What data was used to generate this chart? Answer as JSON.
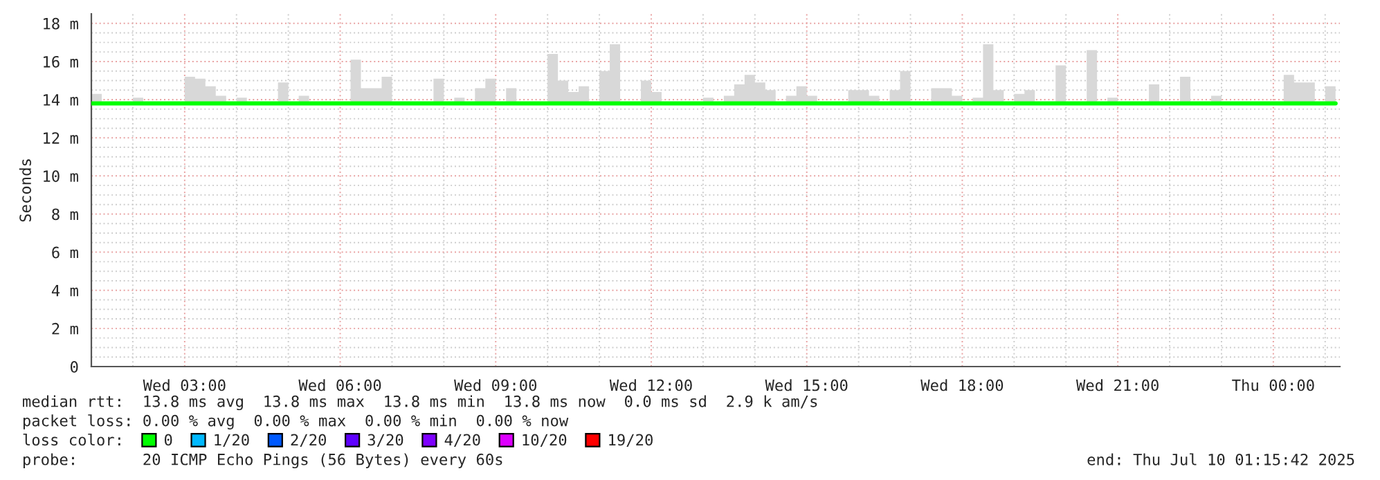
{
  "chart_data": {
    "type": "step",
    "ylabel": "Seconds",
    "legend_title": "loss color:",
    "legend": "bottom",
    "grid": true,
    "xlim": [
      "2025-07-09T01:12",
      "2025-07-10T01:17"
    ],
    "xticks": [
      {
        "value": "2025-07-09T02:00",
        "label": null
      },
      {
        "value": "2025-07-09T03:00",
        "label": "Wed 03:00"
      },
      {
        "value": "2025-07-09T04:00",
        "label": null
      },
      {
        "value": "2025-07-09T05:00",
        "label": null
      },
      {
        "value": "2025-07-09T06:00",
        "label": "Wed 06:00"
      },
      {
        "value": "2025-07-09T07:00",
        "label": null
      },
      {
        "value": "2025-07-09T08:00",
        "label": null
      },
      {
        "value": "2025-07-09T09:00",
        "label": "Wed 09:00"
      },
      {
        "value": "2025-07-09T10:00",
        "label": null
      },
      {
        "value": "2025-07-09T11:00",
        "label": null
      },
      {
        "value": "2025-07-09T12:00",
        "label": "Wed 12:00"
      },
      {
        "value": "2025-07-09T13:00",
        "label": null
      },
      {
        "value": "2025-07-09T14:00",
        "label": null
      },
      {
        "value": "2025-07-09T15:00",
        "label": "Wed 15:00"
      },
      {
        "value": "2025-07-09T16:00",
        "label": null
      },
      {
        "value": "2025-07-09T17:00",
        "label": null
      },
      {
        "value": "2025-07-09T18:00",
        "label": "Wed 18:00"
      },
      {
        "value": "2025-07-09T19:00",
        "label": null
      },
      {
        "value": "2025-07-09T20:00",
        "label": null
      },
      {
        "value": "2025-07-09T21:00",
        "label": "Wed 21:00"
      },
      {
        "value": "2025-07-09T22:00",
        "label": null
      },
      {
        "value": "2025-07-09T23:00",
        "label": null
      },
      {
        "value": "2025-07-10T00:00",
        "label": "Thu 00:00"
      },
      {
        "value": "2025-07-10T01:00",
        "label": null
      }
    ],
    "ylim": [
      0,
      18.5
    ],
    "yticks": [
      0,
      {
        "value": 0.5,
        "label": null
      },
      {
        "value": 1,
        "label": null
      },
      {
        "value": 1.5,
        "label": null
      },
      {
        "value": 2,
        "label": "2 m"
      },
      {
        "value": 2.5,
        "label": null
      },
      {
        "value": 3,
        "label": null
      },
      {
        "value": 3.5,
        "label": null
      },
      {
        "value": 4,
        "label": "4 m"
      },
      {
        "value": 4.5,
        "label": null
      },
      {
        "value": 5,
        "label": null
      },
      {
        "value": 5.5,
        "label": null
      },
      {
        "value": 6,
        "label": "6 m"
      },
      {
        "value": 6.5,
        "label": null
      },
      {
        "value": 7,
        "label": null
      },
      {
        "value": 7.5,
        "label": null
      },
      {
        "value": 8,
        "label": "8 m"
      },
      {
        "value": 8.5,
        "label": null
      },
      {
        "value": 9,
        "label": null
      },
      {
        "value": 9.5,
        "label": null
      },
      {
        "value": 10,
        "label": "10 m"
      },
      {
        "value": 10.5,
        "label": null
      },
      {
        "value": 11,
        "label": null
      },
      {
        "value": 11.5,
        "label": null
      },
      {
        "value": 12,
        "label": "12 m"
      },
      {
        "value": 12.5,
        "label": null
      },
      {
        "value": 13,
        "label": null
      },
      {
        "value": 13.5,
        "label": null
      },
      {
        "value": 14,
        "label": "14 m"
      },
      {
        "value": 14.5,
        "label": null
      },
      {
        "value": 15,
        "label": null
      },
      {
        "value": 15.5,
        "label": null
      },
      {
        "value": 16,
        "label": "16 m"
      },
      {
        "value": 16.5,
        "label": null
      },
      {
        "value": 17,
        "label": null
      },
      {
        "value": 17.5,
        "label": null
      },
      {
        "value": 18,
        "label": "18 m"
      }
    ],
    "series": [
      {
        "name": "0",
        "color": "#00ff00",
        "x": [
          "2025-07-09T01:12",
          "2025-07-09T01:24",
          "2025-07-09T02:00",
          "2025-07-09T02:12",
          "2025-07-09T03:00",
          "2025-07-09T03:12",
          "2025-07-09T03:24",
          "2025-07-09T03:36",
          "2025-07-09T03:48",
          "2025-07-09T04:00",
          "2025-07-09T04:12",
          "2025-07-09T04:48",
          "2025-07-09T05:00",
          "2025-07-09T05:12",
          "2025-07-09T05:24",
          "2025-07-09T06:12",
          "2025-07-09T06:24",
          "2025-07-09T06:36",
          "2025-07-09T06:48",
          "2025-07-09T07:00",
          "2025-07-09T07:48",
          "2025-07-09T08:00",
          "2025-07-09T08:12",
          "2025-07-09T08:24",
          "2025-07-09T08:36",
          "2025-07-09T08:48",
          "2025-07-09T09:00",
          "2025-07-09T09:12",
          "2025-07-09T09:24",
          "2025-07-09T10:00",
          "2025-07-09T10:12",
          "2025-07-09T10:24",
          "2025-07-09T10:36",
          "2025-07-09T10:48",
          "2025-07-09T11:00",
          "2025-07-09T11:12",
          "2025-07-09T11:24",
          "2025-07-09T11:48",
          "2025-07-09T12:00",
          "2025-07-09T12:12",
          "2025-07-09T13:00",
          "2025-07-09T13:12",
          "2025-07-09T13:24",
          "2025-07-09T13:36",
          "2025-07-09T13:48",
          "2025-07-09T14:00",
          "2025-07-09T14:12",
          "2025-07-09T14:24",
          "2025-07-09T14:36",
          "2025-07-09T14:48",
          "2025-07-09T15:00",
          "2025-07-09T15:12",
          "2025-07-09T15:48",
          "2025-07-09T16:00",
          "2025-07-09T16:12",
          "2025-07-09T16:24",
          "2025-07-09T16:36",
          "2025-07-09T16:48",
          "2025-07-09T17:00",
          "2025-07-09T17:24",
          "2025-07-09T17:36",
          "2025-07-09T17:48",
          "2025-07-09T18:00",
          "2025-07-09T18:12",
          "2025-07-09T18:24",
          "2025-07-09T18:36",
          "2025-07-09T18:48",
          "2025-07-09T19:00",
          "2025-07-09T19:12",
          "2025-07-09T19:24",
          "2025-07-09T19:48",
          "2025-07-09T20:00",
          "2025-07-09T20:24",
          "2025-07-09T20:36",
          "2025-07-09T20:48",
          "2025-07-09T21:00",
          "2025-07-09T21:36",
          "2025-07-09T21:48",
          "2025-07-09T22:12",
          "2025-07-09T22:24",
          "2025-07-09T22:48",
          "2025-07-09T23:00",
          "2025-07-10T00:12",
          "2025-07-10T00:24",
          "2025-07-10T00:36",
          "2025-07-10T00:48",
          "2025-07-10T01:00",
          "2025-07-10T01:12"
        ],
        "values": [
          13.8,
          13.8,
          13.8,
          13.8,
          13.8,
          13.8,
          13.8,
          13.8,
          13.8,
          13.8,
          13.8,
          13.8,
          13.8,
          13.8,
          13.8,
          13.8,
          13.8,
          13.8,
          13.8,
          13.8,
          13.8,
          13.8,
          13.8,
          13.8,
          13.8,
          13.8,
          13.8,
          13.8,
          13.8,
          13.8,
          13.8,
          13.8,
          13.8,
          13.8,
          13.8,
          13.8,
          13.8,
          13.8,
          13.8,
          13.8,
          13.8,
          13.8,
          13.8,
          13.8,
          13.8,
          13.8,
          13.8,
          13.8,
          13.8,
          13.8,
          13.8,
          13.8,
          13.8,
          13.8,
          13.8,
          13.8,
          13.8,
          13.8,
          13.8,
          13.8,
          13.8,
          13.8,
          13.8,
          13.8,
          13.8,
          13.8,
          13.8,
          13.8,
          13.8,
          13.8,
          13.8,
          13.8,
          13.8,
          13.8,
          13.8,
          13.8,
          13.8,
          13.8,
          13.8,
          13.8,
          13.8,
          13.8,
          13.8,
          13.8,
          13.8,
          13.8,
          13.8,
          13.8
        ],
        "lower": [
          13.8,
          13.8,
          13.8,
          13.8,
          13.8,
          13.8,
          13.8,
          13.8,
          13.8,
          13.8,
          13.8,
          13.8,
          13.8,
          13.8,
          13.8,
          13.8,
          13.8,
          13.8,
          13.8,
          13.8,
          13.8,
          13.8,
          13.8,
          13.8,
          13.8,
          13.8,
          13.8,
          13.8,
          13.8,
          13.8,
          13.8,
          13.8,
          13.8,
          13.8,
          13.8,
          13.8,
          13.8,
          13.8,
          13.8,
          13.8,
          13.8,
          13.8,
          13.8,
          13.8,
          13.8,
          13.8,
          13.8,
          13.8,
          13.8,
          13.8,
          13.8,
          13.8,
          13.8,
          13.8,
          13.8,
          13.8,
          13.8,
          13.8,
          13.8,
          13.8,
          13.8,
          13.8,
          13.8,
          13.8,
          13.8,
          13.8,
          13.8,
          13.8,
          13.8,
          13.8,
          13.8,
          13.8,
          13.8,
          13.8,
          13.8,
          13.8,
          13.8,
          13.8,
          13.8,
          13.8,
          13.8,
          13.8,
          13.8,
          13.8,
          13.8,
          13.8,
          13.8,
          13.8
        ],
        "upper": [
          14.3,
          13.9,
          14.1,
          13.9,
          15.2,
          15.1,
          14.7,
          14.2,
          13.9,
          14.1,
          13.9,
          14.9,
          13.9,
          14.2,
          13.9,
          16.1,
          14.6,
          14.6,
          15.2,
          13.9,
          15.1,
          13.9,
          14.1,
          13.9,
          14.6,
          15.1,
          13.9,
          14.6,
          13.9,
          16.4,
          15.0,
          14.4,
          14.7,
          13.9,
          15.5,
          16.9,
          13.9,
          15.0,
          14.4,
          13.9,
          14.1,
          13.9,
          14.2,
          14.8,
          15.3,
          14.9,
          14.5,
          13.9,
          14.2,
          14.7,
          14.2,
          13.9,
          14.5,
          14.5,
          14.2,
          13.9,
          14.5,
          15.5,
          13.9,
          14.6,
          14.6,
          14.2,
          13.9,
          14.1,
          16.9,
          14.5,
          13.9,
          14.3,
          14.5,
          13.9,
          15.8,
          13.9,
          16.6,
          13.9,
          14.1,
          13.9,
          14.8,
          13.9,
          15.2,
          13.9,
          14.2,
          13.9,
          15.3,
          14.9,
          14.9,
          13.9,
          14.7,
          13.9
        ]
      },
      {
        "name": "1/20",
        "color": "#00b8ff"
      },
      {
        "name": "2/20",
        "color": "#0059ff"
      },
      {
        "name": "3/20",
        "color": "#5e00ff"
      },
      {
        "name": "4/20",
        "color": "#7e00ff"
      },
      {
        "name": "10/20",
        "color": "#dd00ff"
      },
      {
        "name": "19/20",
        "color": "#ff0000"
      }
    ],
    "annotations": [
      "median rtt:  13.8 ms avg  13.8 ms max  13.8 ms min  13.8 ms now  0.0 ms sd  2.9 k am/s",
      "packet loss: 0.00 % avg  0.00 % max  0.00 % min  0.00 % now",
      "probe:       20 ICMP Echo Pings (56 Bytes) every 60s",
      "end: Thu Jul 10 01:15:42 2025"
    ]
  }
}
